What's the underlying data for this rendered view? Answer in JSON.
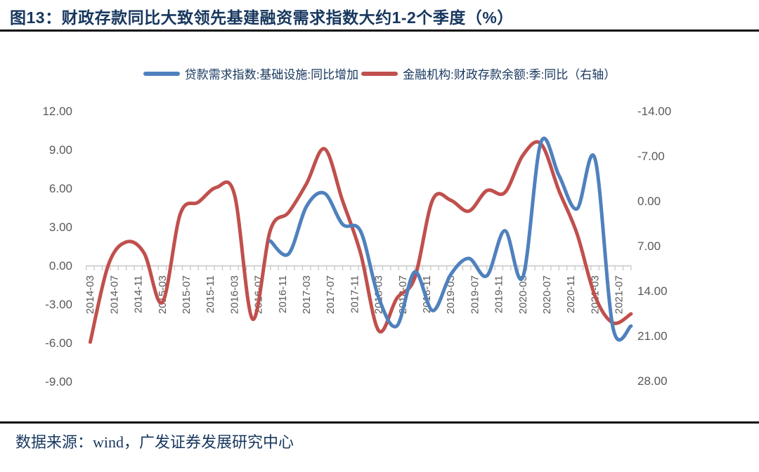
{
  "figure": {
    "title": "图13：财政存款同比大致领先基建融资需求指数大约1-2个季度（%）",
    "source": "数据来源：wind，广发证券发展研究中心"
  },
  "legend": [
    {
      "label": "贷款需求指数:基础设施:同比增加",
      "color": "#4F81BD"
    },
    {
      "label": "金融机构:财政存款余额:季:同比（右轴）",
      "color": "#C0504D"
    }
  ],
  "chart_data": {
    "type": "line",
    "title": "财政存款同比大致领先基建融资需求指数大约1-2个季度（%）",
    "x_tick_labels": [
      "2014-03",
      "2014-07",
      "2014-11",
      "2015-03",
      "2015-07",
      "2015-11",
      "2016-03",
      "2016-07",
      "2016-11",
      "2017-03",
      "2017-07",
      "2017-11",
      "2018-03",
      "2018-07",
      "2018-11",
      "2019-03",
      "2019-07",
      "2019-11",
      "2020-03",
      "2020-07",
      "2020-11",
      "2021-03",
      "2021-07"
    ],
    "left_axis": {
      "ticks": [
        "12.00",
        "9.00",
        "6.00",
        "3.00",
        "0.00",
        "-3.00",
        "-6.00",
        "-9.00"
      ],
      "max": 12,
      "min": -9
    },
    "right_axis": {
      "ticks": [
        "-14.00",
        "-7.00",
        "0.00",
        "7.00",
        "14.00",
        "21.00",
        "28.00"
      ],
      "min": -14,
      "max": 28,
      "inverted": true
    },
    "grid": "off",
    "legend_position": "top",
    "series": [
      {
        "name": "金融机构:财政存款余额:季:同比（右轴）",
        "axis": "right",
        "color": "#C0504D",
        "points": [
          [
            "2014-03",
            22.0
          ],
          [
            "2014-06",
            10.0
          ],
          [
            "2014-09",
            6.4
          ],
          [
            "2014-12",
            8.2
          ],
          [
            "2015-03",
            15.8
          ],
          [
            "2015-06",
            2.0
          ],
          [
            "2015-09",
            0.2
          ],
          [
            "2015-12",
            -2.1
          ],
          [
            "2016-03",
            -1.0
          ],
          [
            "2016-06",
            18.4
          ],
          [
            "2016-09",
            4.5
          ],
          [
            "2016-12",
            1.8
          ],
          [
            "2017-03",
            -2.7
          ],
          [
            "2017-06",
            -8.1
          ],
          [
            "2017-09",
            0.0
          ],
          [
            "2017-12",
            8.2
          ],
          [
            "2018-03",
            20.2
          ],
          [
            "2018-06",
            15.2
          ],
          [
            "2018-09",
            12.0
          ],
          [
            "2018-12",
            -0.2
          ],
          [
            "2019-03",
            -0.1
          ],
          [
            "2019-06",
            1.6
          ],
          [
            "2019-09",
            -1.6
          ],
          [
            "2019-12",
            -1.3
          ],
          [
            "2020-03",
            -7.1
          ],
          [
            "2020-06",
            -8.9
          ],
          [
            "2020-09",
            -1.6
          ],
          [
            "2020-12",
            5.1
          ],
          [
            "2021-03",
            14.8
          ],
          [
            "2021-06",
            19.0
          ],
          [
            "2021-09",
            17.6
          ]
        ]
      },
      {
        "name": "贷款需求指数:基础设施:同比增加",
        "axis": "left",
        "color": "#4F81BD",
        "points": [
          [
            "2016-09",
            1.9
          ],
          [
            "2016-12",
            0.9
          ],
          [
            "2017-03",
            4.6
          ],
          [
            "2017-06",
            5.6
          ],
          [
            "2017-09",
            3.2
          ],
          [
            "2017-12",
            2.65
          ],
          [
            "2018-03",
            -2.5
          ],
          [
            "2018-06",
            -4.7
          ],
          [
            "2018-09",
            -0.5
          ],
          [
            "2018-12",
            -3.5
          ],
          [
            "2019-03",
            -0.7
          ],
          [
            "2019-06",
            0.55
          ],
          [
            "2019-09",
            -0.8
          ],
          [
            "2019-12",
            2.7
          ],
          [
            "2020-03",
            -0.9
          ],
          [
            "2020-06",
            9.55
          ],
          [
            "2020-09",
            7.0
          ],
          [
            "2020-12",
            4.4
          ],
          [
            "2021-03",
            8.3
          ],
          [
            "2021-06",
            -4.85
          ],
          [
            "2021-09",
            -4.7
          ]
        ]
      }
    ]
  }
}
